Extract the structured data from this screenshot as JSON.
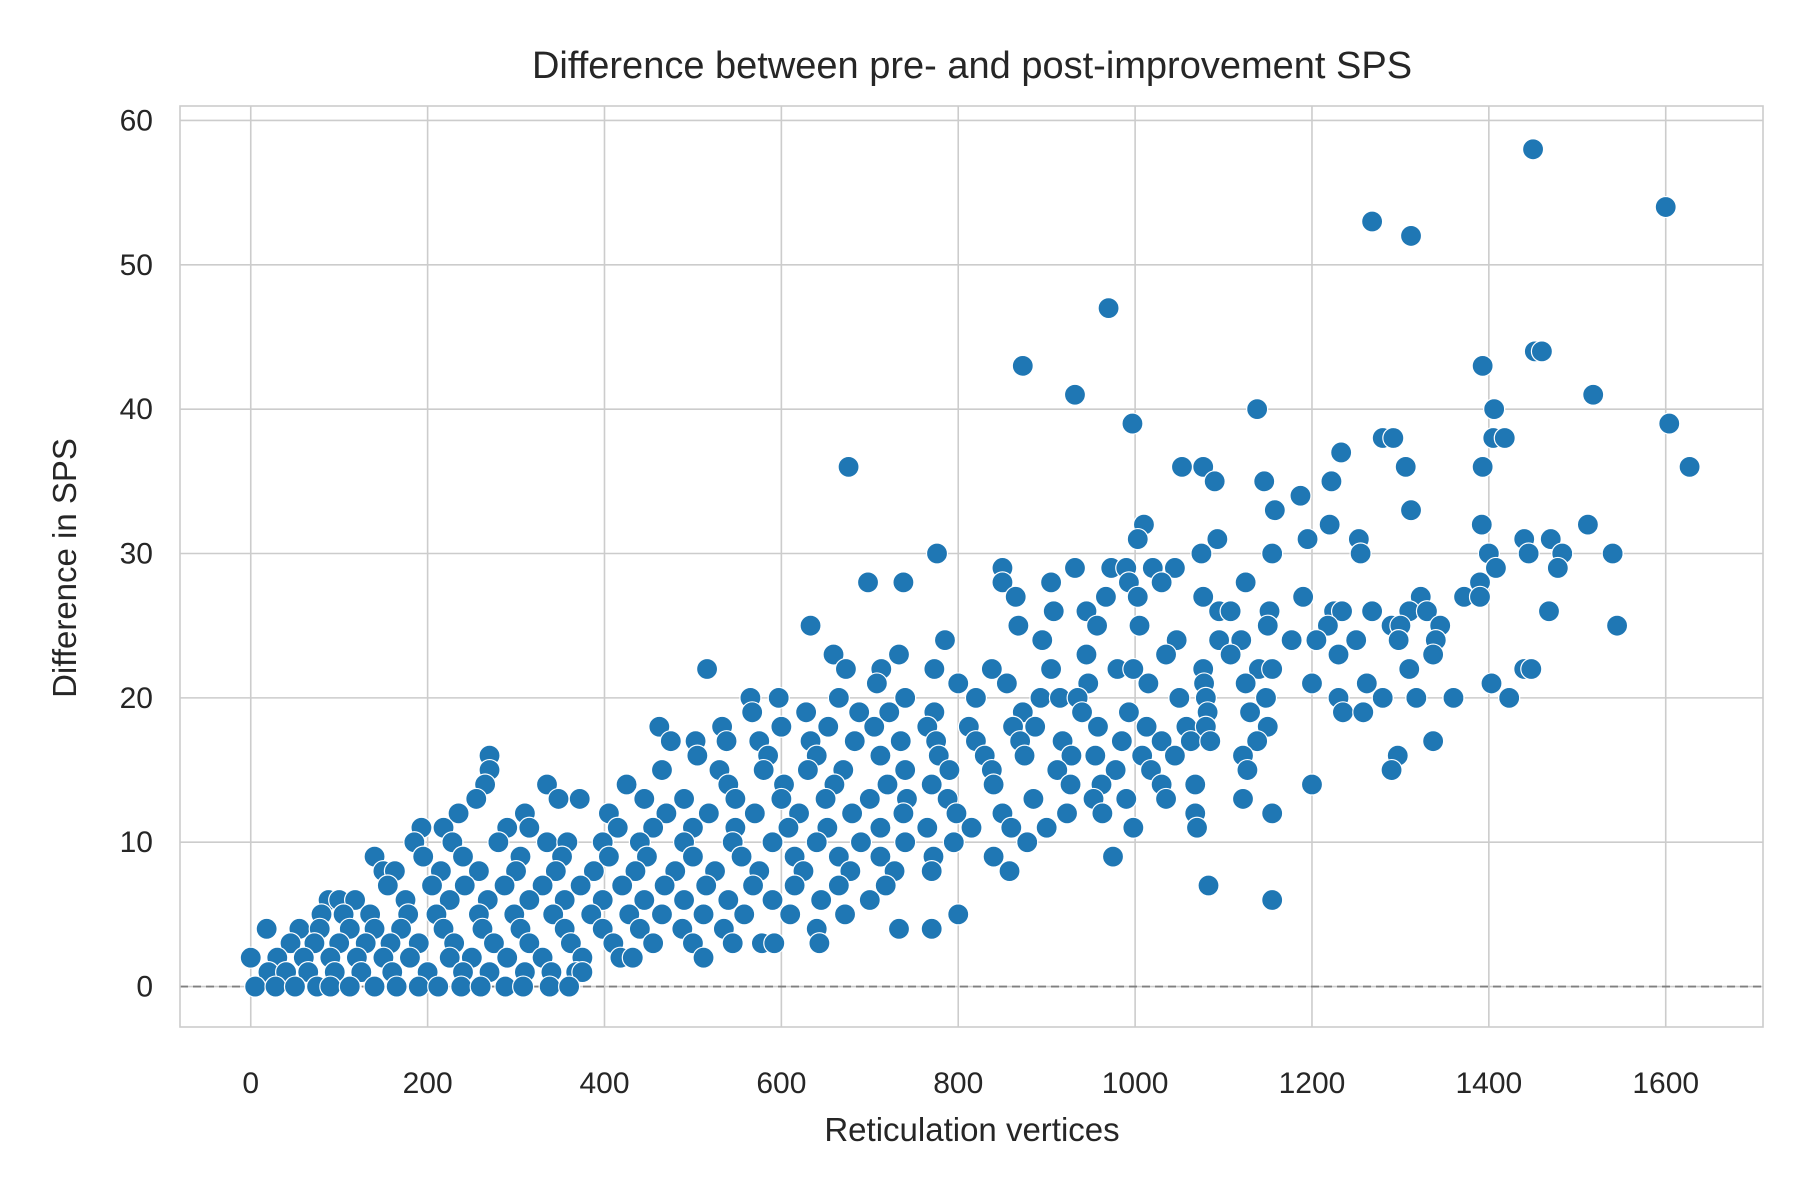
{
  "chart_data": {
    "type": "scatter",
    "title": "Difference between pre- and post-improvement SPS",
    "xlabel": "Reticulation vertices",
    "ylabel": "Difference in SPS",
    "xlim": [
      -80,
      1710
    ],
    "ylim": [
      -2.8,
      61
    ],
    "xticks": [
      0,
      200,
      400,
      600,
      800,
      1000,
      1200,
      1400,
      1600
    ],
    "yticks": [
      0,
      10,
      20,
      30,
      40,
      50,
      60
    ],
    "grid": true,
    "reference_line_y": 0,
    "colors": {
      "point": "#1f77b4",
      "grid": "#cccccc",
      "refline": "#808080",
      "text": "#262626"
    },
    "points": [
      [
        1450,
        58
      ],
      [
        1600,
        54
      ],
      [
        1268,
        53
      ],
      [
        1312,
        52
      ],
      [
        970,
        47
      ],
      [
        1452,
        44
      ],
      [
        1460,
        44
      ],
      [
        873,
        43
      ],
      [
        1393,
        43
      ],
      [
        932,
        41
      ],
      [
        1518,
        41
      ],
      [
        1138,
        40
      ],
      [
        1406,
        40
      ],
      [
        997,
        39
      ],
      [
        1604,
        39
      ],
      [
        1280,
        38
      ],
      [
        1292,
        38
      ],
      [
        1405,
        38
      ],
      [
        1418,
        38
      ],
      [
        1233,
        37
      ],
      [
        676,
        36
      ],
      [
        1053,
        36
      ],
      [
        1077,
        36
      ],
      [
        1306,
        36
      ],
      [
        1393,
        36
      ],
      [
        1627,
        36
      ],
      [
        1090,
        35
      ],
      [
        1146,
        35
      ],
      [
        1222,
        35
      ],
      [
        1187,
        34
      ],
      [
        1158,
        33
      ],
      [
        1312,
        33
      ],
      [
        1010,
        32
      ],
      [
        1220,
        32
      ],
      [
        1392,
        32
      ],
      [
        1512,
        32
      ],
      [
        1003,
        31
      ],
      [
        1093,
        31
      ],
      [
        1195,
        31
      ],
      [
        1253,
        31
      ],
      [
        1440,
        31
      ],
      [
        1470,
        31
      ],
      [
        776,
        30
      ],
      [
        1075,
        30
      ],
      [
        1155,
        30
      ],
      [
        1255,
        30
      ],
      [
        1400,
        30
      ],
      [
        1445,
        30
      ],
      [
        1483,
        30
      ],
      [
        1540,
        30
      ],
      [
        850,
        29
      ],
      [
        932,
        29
      ],
      [
        973,
        29
      ],
      [
        990,
        29
      ],
      [
        1020,
        29
      ],
      [
        1045,
        29
      ],
      [
        1408,
        29
      ],
      [
        1478,
        29
      ],
      [
        698,
        28
      ],
      [
        738,
        28
      ],
      [
        850,
        28
      ],
      [
        905,
        28
      ],
      [
        993,
        28
      ],
      [
        1030,
        28
      ],
      [
        1125,
        28
      ],
      [
        1390,
        28
      ],
      [
        865,
        27
      ],
      [
        967,
        27
      ],
      [
        1003,
        27
      ],
      [
        1077,
        27
      ],
      [
        1190,
        27
      ],
      [
        1323,
        27
      ],
      [
        1372,
        27
      ],
      [
        1390,
        27
      ],
      [
        908,
        26
      ],
      [
        945,
        26
      ],
      [
        1095,
        26
      ],
      [
        1108,
        26
      ],
      [
        1152,
        26
      ],
      [
        1225,
        26
      ],
      [
        1234,
        26
      ],
      [
        1268,
        26
      ],
      [
        1310,
        26
      ],
      [
        1330,
        26
      ],
      [
        1468,
        26
      ],
      [
        633,
        25
      ],
      [
        868,
        25
      ],
      [
        957,
        25
      ],
      [
        1005,
        25
      ],
      [
        1150,
        25
      ],
      [
        1218,
        25
      ],
      [
        1290,
        25
      ],
      [
        1300,
        25
      ],
      [
        1345,
        25
      ],
      [
        1545,
        25
      ],
      [
        785,
        24
      ],
      [
        895,
        24
      ],
      [
        1047,
        24
      ],
      [
        1095,
        24
      ],
      [
        1120,
        24
      ],
      [
        1177,
        24
      ],
      [
        1205,
        24
      ],
      [
        1250,
        24
      ],
      [
        1298,
        24
      ],
      [
        1340,
        24
      ],
      [
        659,
        23
      ],
      [
        733,
        23
      ],
      [
        945,
        23
      ],
      [
        1035,
        23
      ],
      [
        1108,
        23
      ],
      [
        1230,
        23
      ],
      [
        1337,
        23
      ],
      [
        516,
        22
      ],
      [
        673,
        22
      ],
      [
        713,
        22
      ],
      [
        773,
        22
      ],
      [
        838,
        22
      ],
      [
        905,
        22
      ],
      [
        980,
        22
      ],
      [
        998,
        22
      ],
      [
        1077,
        22
      ],
      [
        1140,
        22
      ],
      [
        1155,
        22
      ],
      [
        1310,
        22
      ],
      [
        1440,
        22
      ],
      [
        1448,
        22
      ],
      [
        708,
        21
      ],
      [
        800,
        21
      ],
      [
        855,
        21
      ],
      [
        947,
        21
      ],
      [
        1015,
        21
      ],
      [
        1078,
        21
      ],
      [
        1125,
        21
      ],
      [
        1200,
        21
      ],
      [
        1262,
        21
      ],
      [
        1403,
        21
      ],
      [
        565,
        20
      ],
      [
        597,
        20
      ],
      [
        665,
        20
      ],
      [
        740,
        20
      ],
      [
        820,
        20
      ],
      [
        893,
        20
      ],
      [
        915,
        20
      ],
      [
        935,
        20
      ],
      [
        1050,
        20
      ],
      [
        1080,
        20
      ],
      [
        1148,
        20
      ],
      [
        1230,
        20
      ],
      [
        1280,
        20
      ],
      [
        1318,
        20
      ],
      [
        1360,
        20
      ],
      [
        1423,
        20
      ],
      [
        567,
        19
      ],
      [
        628,
        19
      ],
      [
        688,
        19
      ],
      [
        722,
        19
      ],
      [
        773,
        19
      ],
      [
        873,
        19
      ],
      [
        940,
        19
      ],
      [
        993,
        19
      ],
      [
        1082,
        19
      ],
      [
        1130,
        19
      ],
      [
        1235,
        19
      ],
      [
        1258,
        19
      ],
      [
        462,
        18
      ],
      [
        533,
        18
      ],
      [
        600,
        18
      ],
      [
        653,
        18
      ],
      [
        705,
        18
      ],
      [
        765,
        18
      ],
      [
        812,
        18
      ],
      [
        862,
        18
      ],
      [
        887,
        18
      ],
      [
        958,
        18
      ],
      [
        1013,
        18
      ],
      [
        1058,
        18
      ],
      [
        1080,
        18
      ],
      [
        1150,
        18
      ],
      [
        475,
        17
      ],
      [
        503,
        17
      ],
      [
        538,
        17
      ],
      [
        575,
        17
      ],
      [
        633,
        17
      ],
      [
        683,
        17
      ],
      [
        735,
        17
      ],
      [
        775,
        17
      ],
      [
        820,
        17
      ],
      [
        870,
        17
      ],
      [
        918,
        17
      ],
      [
        985,
        17
      ],
      [
        1030,
        17
      ],
      [
        1063,
        17
      ],
      [
        1085,
        17
      ],
      [
        1138,
        17
      ],
      [
        1337,
        17
      ],
      [
        270,
        16
      ],
      [
        505,
        16
      ],
      [
        585,
        16
      ],
      [
        640,
        16
      ],
      [
        712,
        16
      ],
      [
        778,
        16
      ],
      [
        830,
        16
      ],
      [
        875,
        16
      ],
      [
        928,
        16
      ],
      [
        955,
        16
      ],
      [
        1008,
        16
      ],
      [
        1045,
        16
      ],
      [
        1122,
        16
      ],
      [
        1297,
        16
      ],
      [
        270,
        15
      ],
      [
        465,
        15
      ],
      [
        530,
        15
      ],
      [
        580,
        15
      ],
      [
        630,
        15
      ],
      [
        670,
        15
      ],
      [
        740,
        15
      ],
      [
        790,
        15
      ],
      [
        838,
        15
      ],
      [
        912,
        15
      ],
      [
        978,
        15
      ],
      [
        1018,
        15
      ],
      [
        1127,
        15
      ],
      [
        1290,
        15
      ],
      [
        265,
        14
      ],
      [
        335,
        14
      ],
      [
        425,
        14
      ],
      [
        540,
        14
      ],
      [
        603,
        14
      ],
      [
        660,
        14
      ],
      [
        720,
        14
      ],
      [
        770,
        14
      ],
      [
        840,
        14
      ],
      [
        927,
        14
      ],
      [
        962,
        14
      ],
      [
        1030,
        14
      ],
      [
        1068,
        14
      ],
      [
        1200,
        14
      ],
      [
        255,
        13
      ],
      [
        348,
        13
      ],
      [
        372,
        13
      ],
      [
        445,
        13
      ],
      [
        490,
        13
      ],
      [
        548,
        13
      ],
      [
        600,
        13
      ],
      [
        650,
        13
      ],
      [
        700,
        13
      ],
      [
        742,
        13
      ],
      [
        788,
        13
      ],
      [
        885,
        13
      ],
      [
        953,
        13
      ],
      [
        990,
        13
      ],
      [
        1035,
        13
      ],
      [
        1122,
        13
      ],
      [
        235,
        12
      ],
      [
        310,
        12
      ],
      [
        405,
        12
      ],
      [
        470,
        12
      ],
      [
        518,
        12
      ],
      [
        570,
        12
      ],
      [
        620,
        12
      ],
      [
        680,
        12
      ],
      [
        738,
        12
      ],
      [
        798,
        12
      ],
      [
        850,
        12
      ],
      [
        923,
        12
      ],
      [
        963,
        12
      ],
      [
        1068,
        12
      ],
      [
        1155,
        12
      ],
      [
        193,
        11
      ],
      [
        218,
        11
      ],
      [
        290,
        11
      ],
      [
        315,
        11
      ],
      [
        415,
        11
      ],
      [
        455,
        11
      ],
      [
        500,
        11
      ],
      [
        548,
        11
      ],
      [
        608,
        11
      ],
      [
        652,
        11
      ],
      [
        712,
        11
      ],
      [
        765,
        11
      ],
      [
        815,
        11
      ],
      [
        860,
        11
      ],
      [
        900,
        11
      ],
      [
        998,
        11
      ],
      [
        1070,
        11
      ],
      [
        185,
        10
      ],
      [
        228,
        10
      ],
      [
        280,
        10
      ],
      [
        335,
        10
      ],
      [
        358,
        10
      ],
      [
        398,
        10
      ],
      [
        440,
        10
      ],
      [
        490,
        10
      ],
      [
        545,
        10
      ],
      [
        590,
        10
      ],
      [
        640,
        10
      ],
      [
        690,
        10
      ],
      [
        740,
        10
      ],
      [
        795,
        10
      ],
      [
        878,
        10
      ],
      [
        140,
        9
      ],
      [
        195,
        9
      ],
      [
        240,
        9
      ],
      [
        305,
        9
      ],
      [
        352,
        9
      ],
      [
        405,
        9
      ],
      [
        448,
        9
      ],
      [
        500,
        9
      ],
      [
        555,
        9
      ],
      [
        615,
        9
      ],
      [
        665,
        9
      ],
      [
        712,
        9
      ],
      [
        772,
        9
      ],
      [
        840,
        9
      ],
      [
        975,
        9
      ],
      [
        150,
        8
      ],
      [
        163,
        8
      ],
      [
        215,
        8
      ],
      [
        258,
        8
      ],
      [
        300,
        8
      ],
      [
        345,
        8
      ],
      [
        388,
        8
      ],
      [
        435,
        8
      ],
      [
        480,
        8
      ],
      [
        525,
        8
      ],
      [
        575,
        8
      ],
      [
        625,
        8
      ],
      [
        678,
        8
      ],
      [
        728,
        8
      ],
      [
        770,
        8
      ],
      [
        858,
        8
      ],
      [
        155,
        7
      ],
      [
        205,
        7
      ],
      [
        242,
        7
      ],
      [
        287,
        7
      ],
      [
        330,
        7
      ],
      [
        373,
        7
      ],
      [
        420,
        7
      ],
      [
        468,
        7
      ],
      [
        515,
        7
      ],
      [
        568,
        7
      ],
      [
        615,
        7
      ],
      [
        665,
        7
      ],
      [
        718,
        7
      ],
      [
        1083,
        7
      ],
      [
        88,
        6
      ],
      [
        100,
        6
      ],
      [
        118,
        6
      ],
      [
        175,
        6
      ],
      [
        225,
        6
      ],
      [
        268,
        6
      ],
      [
        315,
        6
      ],
      [
        355,
        6
      ],
      [
        398,
        6
      ],
      [
        445,
        6
      ],
      [
        490,
        6
      ],
      [
        540,
        6
      ],
      [
        590,
        6
      ],
      [
        645,
        6
      ],
      [
        700,
        6
      ],
      [
        1155,
        6
      ],
      [
        80,
        5
      ],
      [
        105,
        5
      ],
      [
        135,
        5
      ],
      [
        178,
        5
      ],
      [
        210,
        5
      ],
      [
        258,
        5
      ],
      [
        298,
        5
      ],
      [
        342,
        5
      ],
      [
        385,
        5
      ],
      [
        428,
        5
      ],
      [
        465,
        5
      ],
      [
        512,
        5
      ],
      [
        558,
        5
      ],
      [
        610,
        5
      ],
      [
        672,
        5
      ],
      [
        800,
        5
      ],
      [
        55,
        4
      ],
      [
        78,
        4
      ],
      [
        112,
        4
      ],
      [
        140,
        4
      ],
      [
        170,
        4
      ],
      [
        218,
        4
      ],
      [
        262,
        4
      ],
      [
        305,
        4
      ],
      [
        355,
        4
      ],
      [
        398,
        4
      ],
      [
        440,
        4
      ],
      [
        488,
        4
      ],
      [
        535,
        4
      ],
      [
        640,
        4
      ],
      [
        733,
        4
      ],
      [
        770,
        4
      ],
      [
        45,
        3
      ],
      [
        72,
        3
      ],
      [
        100,
        3
      ],
      [
        130,
        3
      ],
      [
        158,
        3
      ],
      [
        190,
        3
      ],
      [
        230,
        3
      ],
      [
        275,
        3
      ],
      [
        315,
        3
      ],
      [
        362,
        3
      ],
      [
        410,
        3
      ],
      [
        455,
        3
      ],
      [
        500,
        3
      ],
      [
        545,
        3
      ],
      [
        578,
        3
      ],
      [
        592,
        3
      ],
      [
        643,
        3
      ],
      [
        18,
        4
      ],
      [
        30,
        2
      ],
      [
        60,
        2
      ],
      [
        90,
        2
      ],
      [
        120,
        2
      ],
      [
        150,
        2
      ],
      [
        180,
        2
      ],
      [
        225,
        2
      ],
      [
        250,
        2
      ],
      [
        290,
        2
      ],
      [
        330,
        2
      ],
      [
        375,
        2
      ],
      [
        418,
        2
      ],
      [
        432,
        2
      ],
      [
        512,
        2
      ],
      [
        0,
        2
      ],
      [
        20,
        1
      ],
      [
        40,
        1
      ],
      [
        65,
        1
      ],
      [
        95,
        1
      ],
      [
        125,
        1
      ],
      [
        160,
        1
      ],
      [
        200,
        1
      ],
      [
        240,
        1
      ],
      [
        270,
        1
      ],
      [
        310,
        1
      ],
      [
        340,
        1
      ],
      [
        368,
        1
      ],
      [
        375,
        1
      ],
      [
        5,
        0
      ],
      [
        28,
        0
      ],
      [
        50,
        0
      ],
      [
        75,
        0
      ],
      [
        90,
        0
      ],
      [
        112,
        0
      ],
      [
        140,
        0
      ],
      [
        165,
        0
      ],
      [
        190,
        0
      ],
      [
        212,
        0
      ],
      [
        238,
        0
      ],
      [
        260,
        0
      ],
      [
        288,
        0
      ],
      [
        308,
        0
      ],
      [
        338,
        0
      ],
      [
        360,
        0
      ]
    ]
  }
}
